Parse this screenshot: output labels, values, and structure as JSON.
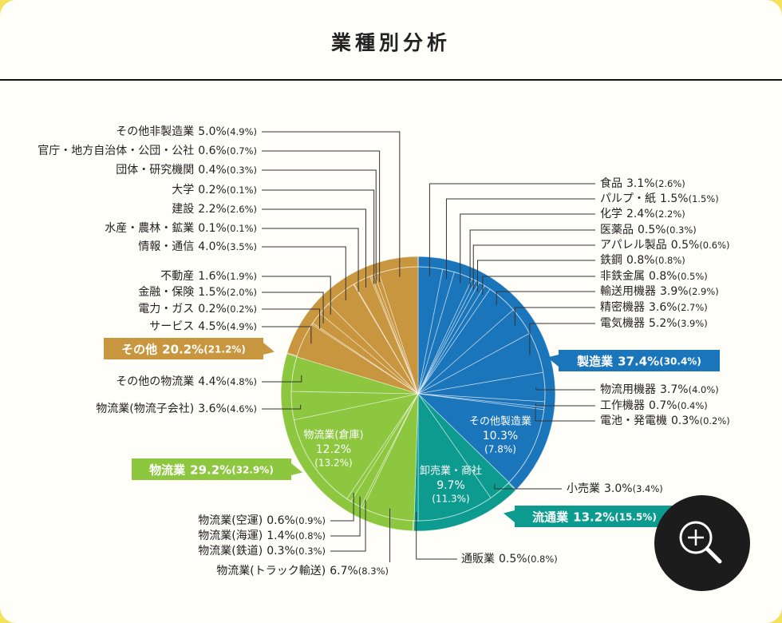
{
  "chart_data": {
    "type": "pie",
    "title": "業種別分析",
    "groups": [
      {
        "name": "製造業",
        "color": "#1b75bb",
        "value": 37.4,
        "value_label": "37.4%",
        "previous_label": "(30.4%)",
        "slices": [
          {
            "name": "食品",
            "value": 3.1,
            "value_label": "3.1%",
            "previous_label": "(2.6%)"
          },
          {
            "name": "パルプ・紙",
            "value": 1.5,
            "value_label": "1.5%",
            "previous_label": "(1.5%)"
          },
          {
            "name": "化学",
            "value": 2.4,
            "value_label": "2.4%",
            "previous_label": "(2.2%)"
          },
          {
            "name": "医薬品",
            "value": 0.5,
            "value_label": "0.5%",
            "previous_label": "(0.3%)"
          },
          {
            "name": "アパレル製品",
            "value": 0.5,
            "value_label": "0.5%",
            "previous_label": "(0.6%)"
          },
          {
            "name": "鉄鋼",
            "value": 0.8,
            "value_label": "0.8%",
            "previous_label": "(0.8%)"
          },
          {
            "name": "非鉄金属",
            "value": 0.8,
            "value_label": "0.8%",
            "previous_label": "(0.5%)"
          },
          {
            "name": "輸送用機器",
            "value": 3.9,
            "value_label": "3.9%",
            "previous_label": "(2.9%)"
          },
          {
            "name": "精密機器",
            "value": 3.6,
            "value_label": "3.6%",
            "previous_label": "(2.7%)"
          },
          {
            "name": "電気機器",
            "value": 5.2,
            "value_label": "5.2%",
            "previous_label": "(3.9%)"
          },
          {
            "name": "物流用機器",
            "value": 3.7,
            "value_label": "3.7%",
            "previous_label": "(4.0%)"
          },
          {
            "name": "工作機器",
            "value": 0.7,
            "value_label": "0.7%",
            "previous_label": "(0.4%)"
          },
          {
            "name": "電池・発電機",
            "value": 0.3,
            "value_label": "0.3%",
            "previous_label": "(0.2%)"
          },
          {
            "name": "その他製造業",
            "value": 10.3,
            "value_label": "10.3%",
            "previous_label": "(7.8%)"
          }
        ]
      },
      {
        "name": "流通業",
        "color": "#0d9b8f",
        "value": 13.2,
        "value_label": "13.2%",
        "previous_label": "(15.5%)",
        "slices": [
          {
            "name": "小売業",
            "value": 3.0,
            "value_label": "3.0%",
            "previous_label": "(3.4%)"
          },
          {
            "name": "卸売業・商社",
            "value": 9.7,
            "value_label": "9.7%",
            "previous_label": "(11.3%)"
          },
          {
            "name": "通販業",
            "value": 0.5,
            "value_label": "0.5%",
            "previous_label": "(0.8%)"
          }
        ]
      },
      {
        "name": "物流業",
        "color": "#8dc63f",
        "value": 29.2,
        "value_label": "29.2%",
        "previous_label": "(32.9%)",
        "slices": [
          {
            "name": "物流業(トラック輸送)",
            "value": 6.7,
            "value_label": "6.7%",
            "previous_label": "(8.3%)"
          },
          {
            "name": "物流業(鉄道)",
            "value": 0.3,
            "value_label": "0.3%",
            "previous_label": "(0.3%)"
          },
          {
            "name": "物流業(海運)",
            "value": 1.4,
            "value_label": "1.4%",
            "previous_label": "(0.8%)"
          },
          {
            "name": "物流業(空運)",
            "value": 0.6,
            "value_label": "0.6%",
            "previous_label": "(0.9%)"
          },
          {
            "name": "物流業(倉庫)",
            "value": 12.2,
            "value_label": "12.2%",
            "previous_label": "(13.2%)"
          },
          {
            "name": "物流業(物流子会社)",
            "value": 3.6,
            "value_label": "3.6%",
            "previous_label": "(4.6%)"
          },
          {
            "name": "その他の物流業",
            "value": 4.4,
            "value_label": "4.4%",
            "previous_label": "(4.8%)"
          }
        ]
      },
      {
        "name": "その他",
        "color": "#c8963e",
        "value": 20.2,
        "value_label": "20.2%",
        "previous_label": "(21.2%)",
        "slices": [
          {
            "name": "サービス",
            "value": 4.5,
            "value_label": "4.5%",
            "previous_label": "(4.9%)"
          },
          {
            "name": "電力・ガス",
            "value": 0.2,
            "value_label": "0.2%",
            "previous_label": "(0.2%)"
          },
          {
            "name": "金融・保険",
            "value": 1.5,
            "value_label": "1.5%",
            "previous_label": "(2.0%)"
          },
          {
            "name": "不動産",
            "value": 1.6,
            "value_label": "1.6%",
            "previous_label": "(1.9%)"
          },
          {
            "name": "情報・通信",
            "value": 4.0,
            "value_label": "4.0%",
            "previous_label": "(3.5%)"
          },
          {
            "name": "水産・農林・鉱業",
            "value": 0.1,
            "value_label": "0.1%",
            "previous_label": "(0.1%)"
          },
          {
            "name": "建設",
            "value": 2.2,
            "value_label": "2.2%",
            "previous_label": "(2.6%)"
          },
          {
            "name": "大学",
            "value": 0.2,
            "value_label": "0.2%",
            "previous_label": "(0.1%)"
          },
          {
            "name": "団体・研究機関",
            "value": 0.4,
            "value_label": "0.4%",
            "previous_label": "(0.3%)"
          },
          {
            "name": "官庁・地方自治体・公団・公社",
            "value": 0.6,
            "value_label": "0.6%",
            "previous_label": "(0.7%)"
          },
          {
            "name": "その他非製造業",
            "value": 5.0,
            "value_label": "5.0%",
            "previous_label": "(4.9%)"
          }
        ]
      }
    ]
  }
}
